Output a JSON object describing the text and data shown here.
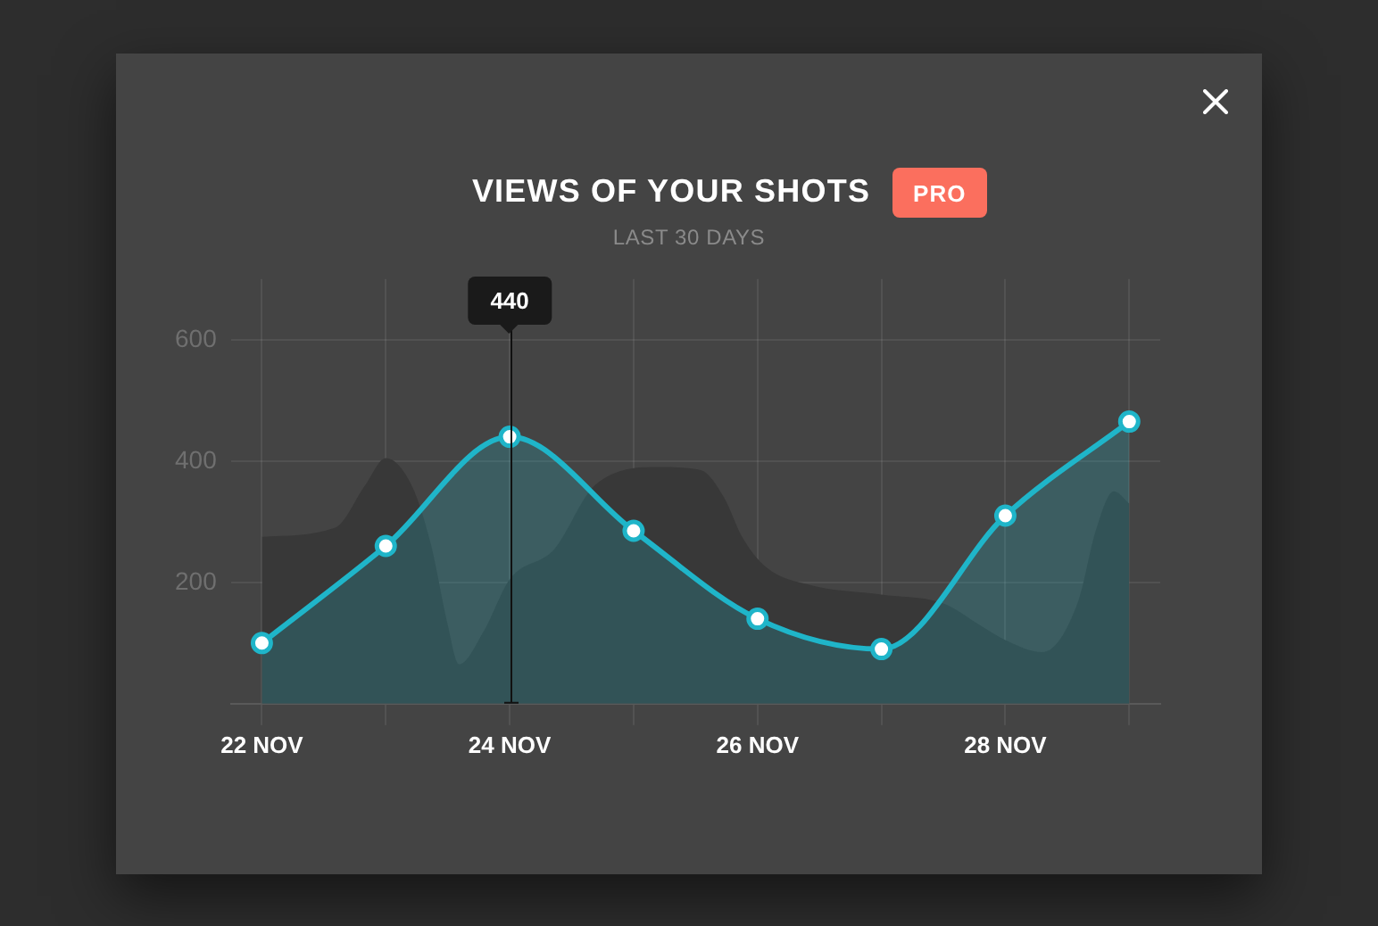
{
  "chart_data": {
    "type": "area",
    "title": "VIEWS OF YOUR SHOTS",
    "subtitle": "LAST 30 DAYS",
    "annotations": [
      "PRO",
      {
        "text": "440",
        "x": "--11-24"
      }
    ],
    "x": [
      "--11-22",
      "--11-23",
      "--11-24",
      "--11-25",
      "--11-26",
      "--11-27",
      "--11-28",
      "--11-29"
    ],
    "xlim": [
      "--11-21T18:00",
      "--11-29T06:00"
    ],
    "xticks": [
      {
        "value": "--11-22",
        "label": "22 NOV"
      },
      {
        "value": "--11-23",
        "label": null
      },
      {
        "value": "--11-24",
        "label": "24 NOV"
      },
      {
        "value": "--11-25",
        "label": null
      },
      {
        "value": "--11-26",
        "label": "26 NOV"
      },
      {
        "value": "--11-27",
        "label": null
      },
      {
        "value": "--11-28",
        "label": "28 NOV"
      },
      {
        "value": "--11-29",
        "label": null
      }
    ],
    "ylim": [
      0,
      700
    ],
    "yticks": [
      200,
      400,
      600
    ],
    "grid": true,
    "marker": "circle",
    "series": [
      {
        "color": "#1fb5c9",
        "values": [
          100,
          260,
          440,
          285,
          140,
          90,
          310,
          465
        ]
      },
      {
        "color": "#383838",
        "marker": "none",
        "x": [
          "--11-22",
          "--11-22T14:10",
          "--11-22T20:00",
          "--11-23",
          "--11-23T05:00",
          "--11-23T08:40",
          "--11-23T12:00",
          "--11-23T14:10",
          "--11-23T19:00",
          "--11-24",
          "--11-24T08:40",
          "--11-24T16:30",
          "--11-25T05:00",
          "--11-25T13:00",
          "--11-25T17:30",
          "--11-25T21:00",
          "--11-26T01:40",
          "--11-26T10:30",
          "--11-27",
          "--11-27T12:00",
          "--11-27T19:00",
          "--11-28",
          "--11-28T07:10",
          "--11-28T14:10",
          "--11-28T17:30",
          "--11-28T21:00",
          "--11-29"
        ],
        "values": [
          275,
          290,
          360,
          405,
          360,
          265,
          130,
          65,
          120,
          205,
          255,
          360,
          390,
          385,
          340,
          275,
          225,
          195,
          180,
          165,
          130,
          105,
          85,
          170,
          285,
          350,
          330
        ]
      }
    ]
  }
}
